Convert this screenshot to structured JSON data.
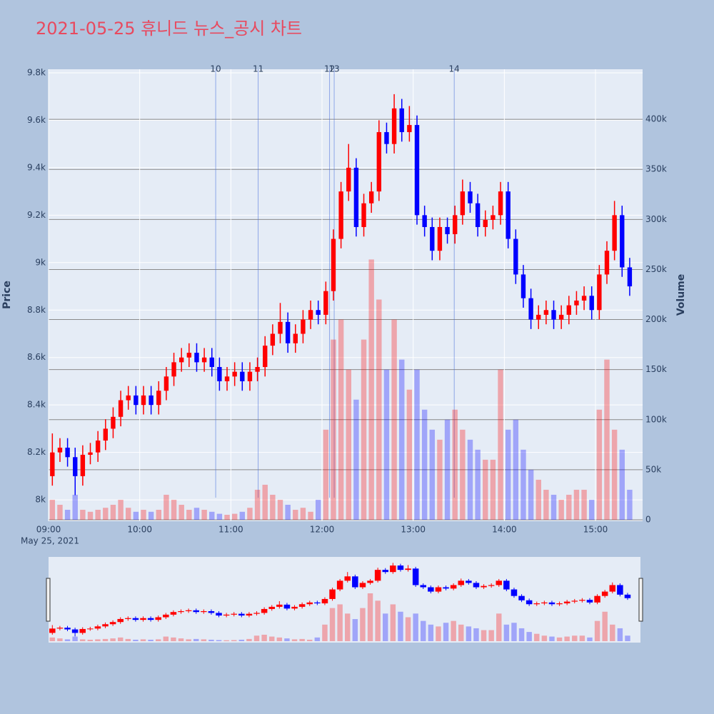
{
  "chart_data": {
    "type": "candlestick",
    "title": "2021-05-25 휴니드 뉴스_공시 차트",
    "title_color": "#e84a5f",
    "ylabel": "Price",
    "y2label": "Volume",
    "x_date_label": "May 25, 2021",
    "increasing_color": "#ff0000",
    "decreasing_color": "#0000ff",
    "x": [
      "09:00",
      "09:05",
      "09:10",
      "09:15",
      "09:20",
      "09:25",
      "09:30",
      "09:35",
      "09:40",
      "09:45",
      "09:50",
      "09:55",
      "10:00",
      "10:05",
      "10:10",
      "10:15",
      "10:20",
      "10:25",
      "10:30",
      "10:35",
      "10:40",
      "10:45",
      "10:50",
      "10:55",
      "11:00",
      "11:05",
      "11:10",
      "11:15",
      "11:20",
      "11:25",
      "11:30",
      "11:35",
      "11:40",
      "11:45",
      "11:50",
      "11:55",
      "12:00",
      "12:05",
      "12:10",
      "12:15",
      "12:20",
      "12:25",
      "12:30",
      "12:35",
      "12:40",
      "12:45",
      "12:50",
      "12:55",
      "13:00",
      "13:05",
      "13:10",
      "13:15",
      "13:20",
      "13:25",
      "13:30",
      "13:35",
      "13:40",
      "13:45",
      "13:50",
      "13:55",
      "14:00",
      "14:05",
      "14:10",
      "14:15",
      "14:20",
      "14:25",
      "14:30",
      "14:35",
      "14:40",
      "14:45",
      "14:50",
      "14:55",
      "15:00",
      "15:05",
      "15:10",
      "15:15",
      "15:20"
    ],
    "open": [
      8100,
      8200,
      8220,
      8180,
      8100,
      8190,
      8200,
      8250,
      8300,
      8350,
      8420,
      8440,
      8400,
      8440,
      8400,
      8460,
      8520,
      8580,
      8600,
      8620,
      8580,
      8600,
      8560,
      8500,
      8520,
      8540,
      8500,
      8540,
      8560,
      8650,
      8700,
      8750,
      8660,
      8700,
      8760,
      8800,
      8780,
      8880,
      9100,
      9300,
      9400,
      9150,
      9250,
      9300,
      9550,
      9500,
      9650,
      9550,
      9580,
      9200,
      9150,
      9050,
      9150,
      9120,
      9200,
      9300,
      9250,
      9150,
      9180,
      9200,
      9300,
      9100,
      8950,
      8850,
      8760,
      8780,
      8800,
      8760,
      8780,
      8820,
      8840,
      8860,
      8800,
      8950,
      9050,
      9200,
      8980
    ],
    "high": [
      8280,
      8260,
      8260,
      8220,
      8230,
      8240,
      8290,
      8340,
      8390,
      8460,
      8480,
      8480,
      8480,
      8480,
      8500,
      8560,
      8620,
      8640,
      8660,
      8660,
      8640,
      8640,
      8600,
      8560,
      8580,
      8580,
      8580,
      8600,
      8690,
      8740,
      8830,
      8790,
      8740,
      8800,
      8840,
      8840,
      8920,
      9140,
      9340,
      9500,
      9440,
      9290,
      9340,
      9600,
      9590,
      9710,
      9690,
      9660,
      9620,
      9240,
      9190,
      9190,
      9190,
      9240,
      9350,
      9340,
      9290,
      9220,
      9240,
      9340,
      9340,
      9140,
      8990,
      8890,
      8820,
      8840,
      8840,
      8820,
      8860,
      8880,
      8900,
      8900,
      8990,
      9090,
      9260,
      9240,
      9020
    ],
    "low": [
      8060,
      8160,
      8140,
      8020,
      8060,
      8150,
      8160,
      8210,
      8260,
      8310,
      8380,
      8360,
      8360,
      8360,
      8360,
      8420,
      8480,
      8540,
      8560,
      8540,
      8540,
      8520,
      8460,
      8460,
      8480,
      8460,
      8460,
      8500,
      8520,
      8610,
      8660,
      8620,
      8620,
      8660,
      8720,
      8740,
      8740,
      8840,
      9060,
      9260,
      9110,
      9110,
      9210,
      9260,
      9460,
      9460,
      9510,
      9510,
      9160,
      9110,
      9010,
      9010,
      9080,
      9080,
      9160,
      9210,
      9110,
      9110,
      9140,
      9160,
      9060,
      8910,
      8810,
      8720,
      8720,
      8740,
      8720,
      8720,
      8740,
      8780,
      8800,
      8760,
      8760,
      8910,
      9010,
      8940,
      8860
    ],
    "close": [
      8200,
      8220,
      8180,
      8100,
      8190,
      8200,
      8250,
      8300,
      8350,
      8420,
      8440,
      8400,
      8440,
      8400,
      8460,
      8520,
      8580,
      8600,
      8620,
      8580,
      8600,
      8560,
      8500,
      8520,
      8540,
      8500,
      8540,
      8560,
      8650,
      8700,
      8750,
      8660,
      8700,
      8760,
      8800,
      8780,
      8880,
      9100,
      9300,
      9400,
      9150,
      9250,
      9300,
      9550,
      9500,
      9650,
      9550,
      9580,
      9200,
      9150,
      9050,
      9150,
      9120,
      9200,
      9300,
      9250,
      9150,
      9180,
      9200,
      9300,
      9100,
      8950,
      8850,
      8760,
      8780,
      8800,
      8760,
      8780,
      8820,
      8840,
      8860,
      8800,
      8950,
      9050,
      9200,
      8980,
      8900
    ],
    "volume": [
      20000,
      15000,
      10000,
      25000,
      10000,
      8000,
      10000,
      12000,
      15000,
      20000,
      12000,
      8000,
      10000,
      8000,
      10000,
      25000,
      20000,
      15000,
      10000,
      12000,
      10000,
      8000,
      6000,
      5000,
      6000,
      8000,
      12000,
      30000,
      35000,
      25000,
      20000,
      15000,
      10000,
      12000,
      8000,
      20000,
      90000,
      180000,
      200000,
      150000,
      120000,
      180000,
      260000,
      220000,
      150000,
      200000,
      160000,
      130000,
      150000,
      110000,
      90000,
      80000,
      100000,
      110000,
      90000,
      80000,
      70000,
      60000,
      60000,
      150000,
      90000,
      100000,
      70000,
      50000,
      40000,
      30000,
      25000,
      20000,
      25000,
      30000,
      30000,
      20000,
      110000,
      160000,
      90000,
      70000,
      30000
    ],
    "xlim": [
      "09:00",
      "15:31"
    ],
    "xticks": [
      "09:00",
      "10:00",
      "11:00",
      "12:00",
      "13:00",
      "14:00",
      "15:00"
    ],
    "ylim": [
      7910,
      9815
    ],
    "yticks": [
      {
        "value": 8000,
        "label": "8k"
      },
      {
        "value": 8200,
        "label": "8.2k"
      },
      {
        "value": 8400,
        "label": "8.4k"
      },
      {
        "value": 8600,
        "label": "8.6k"
      },
      {
        "value": 8800,
        "label": "8.8k"
      },
      {
        "value": 9000,
        "label": "9k"
      },
      {
        "value": 9200,
        "label": "9.2k"
      },
      {
        "value": 9400,
        "label": "9.4k"
      },
      {
        "value": 9600,
        "label": "9.6k"
      },
      {
        "value": 9800,
        "label": "9.8k"
      }
    ],
    "y2lim": [
      0,
      450000
    ],
    "y2ticks": [
      0,
      {
        "value": 50000,
        "label": "50k"
      },
      {
        "value": 100000,
        "label": "100k"
      },
      {
        "value": 150000,
        "label": "150k"
      },
      {
        "value": 200000,
        "label": "200k"
      },
      {
        "value": 250000,
        "label": "250k"
      },
      {
        "value": 300000,
        "label": "300k"
      },
      {
        "value": 350000,
        "label": "350k"
      },
      {
        "value": 400000,
        "label": "400k"
      }
    ],
    "news": [
      {
        "x": "10:50",
        "label": "10"
      },
      {
        "x": "11:18",
        "label": "11"
      },
      {
        "x": "12:05",
        "label": "12"
      },
      {
        "x": "12:08",
        "label": "13"
      },
      {
        "x": "13:27",
        "label": "14"
      }
    ],
    "rangeslider": true
  }
}
